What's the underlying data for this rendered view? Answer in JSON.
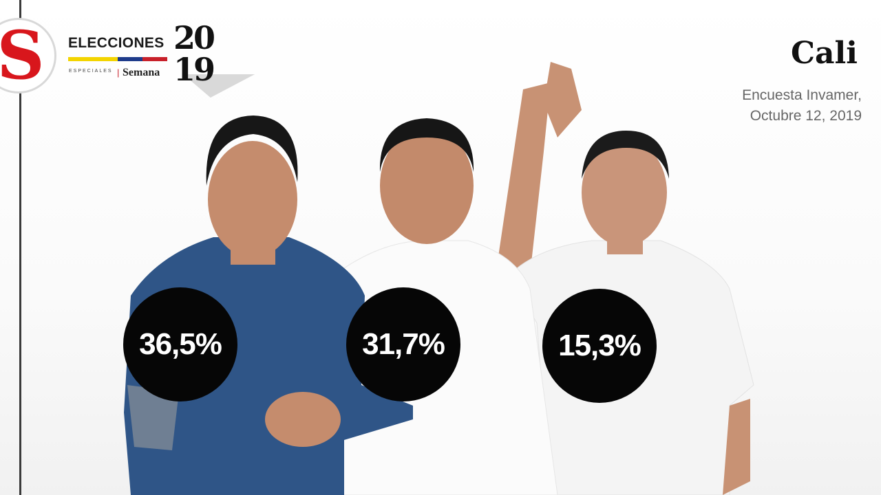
{
  "branding": {
    "logo_letter": "S",
    "series_title": "ELECCIONES",
    "series_year": "2019",
    "subtitle_small": "ESPECIALES",
    "publisher": "Semana",
    "flag_colors": [
      "#f3d400",
      "#1e3b8a",
      "#c8202a"
    ]
  },
  "header": {
    "city": "Cali",
    "source_line1": "Encuesta Invamer,",
    "source_line2": "Octubre 12, 2019"
  },
  "candidates": [
    {
      "percent_label": "36,5%",
      "value": 36.5,
      "shirt_color": "#2f5587"
    },
    {
      "percent_label": "31,7%",
      "value": 31.7,
      "shirt_color": "#f7f7f7"
    },
    {
      "percent_label": "15,3%",
      "value": 15.3,
      "shirt_color": "#f5f5f5"
    }
  ],
  "colors": {
    "bubble": "#060606",
    "logo_red": "#d8161c"
  }
}
